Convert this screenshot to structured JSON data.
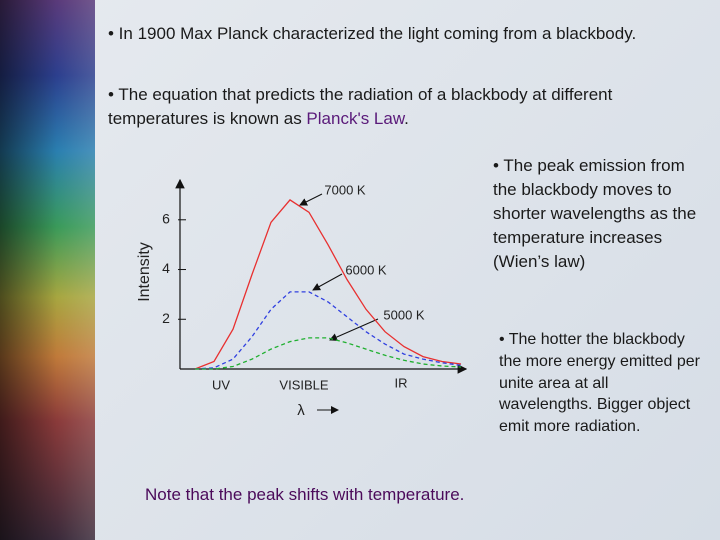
{
  "bullets": [
    {
      "text": "• In 1900 Max Planck characterized the light coming from a blackbody."
    },
    {
      "text": "• The equation that predicts the radiation of a blackbody at different temperatures is known as ",
      "highlight": "Planck's Law",
      "end": "."
    }
  ],
  "side_bullets": [
    "• The peak emission from the blackbody moves to shorter wavelengths as the temperature increases (Wien’s law)",
    "• The hotter the blackbody the more energy emitted per unite area at all wavelengths. Bigger object emit more radiation."
  ],
  "note": "Note that the peak shifts with temperature.",
  "chart_data": {
    "type": "line",
    "ylabel": "Intensity",
    "xlabel": "λ",
    "x_regions": [
      "UV",
      "VISIBLE",
      "IR"
    ],
    "ylim": [
      0,
      7.6
    ],
    "yticks": [
      2,
      4,
      6
    ],
    "categories": [
      null,
      null,
      null,
      null,
      null,
      null,
      null,
      null,
      null,
      null,
      null,
      null,
      null,
      null,
      null
    ],
    "series": [
      {
        "name": "7000 K",
        "color": "#e83030",
        "dash": false,
        "values": [
          0,
          0.3,
          1.6,
          3.8,
          5.9,
          6.8,
          6.3,
          5.0,
          3.6,
          2.4,
          1.5,
          0.9,
          0.5,
          0.3,
          0.2
        ]
      },
      {
        "name": "6000 K",
        "color": "#3040e0",
        "dash": true,
        "values": [
          0,
          0.05,
          0.4,
          1.3,
          2.4,
          3.1,
          3.1,
          2.7,
          2.1,
          1.5,
          1.0,
          0.6,
          0.4,
          0.25,
          0.15
        ]
      },
      {
        "name": "5000 K",
        "color": "#20b030",
        "dash": true,
        "values": [
          0,
          0,
          0.1,
          0.4,
          0.8,
          1.1,
          1.25,
          1.25,
          1.05,
          0.8,
          0.55,
          0.35,
          0.2,
          0.12,
          0.08
        ]
      }
    ]
  }
}
